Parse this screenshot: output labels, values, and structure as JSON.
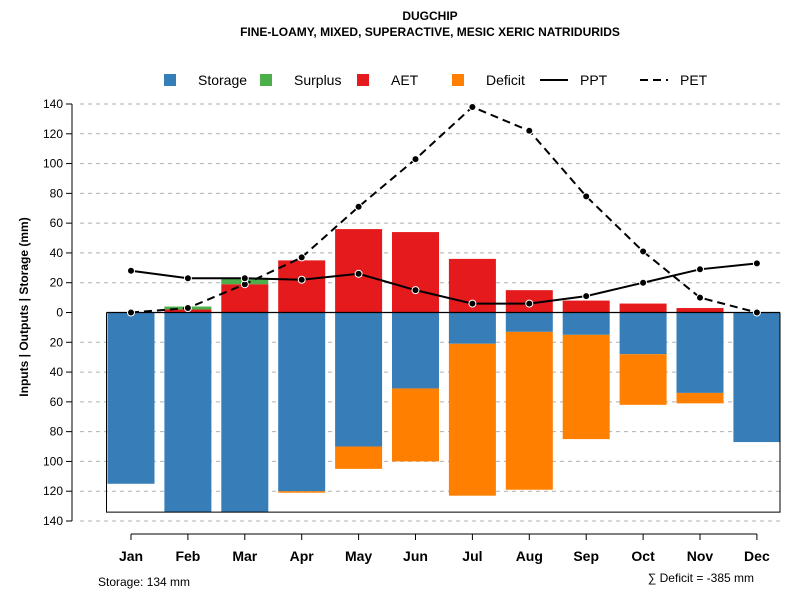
{
  "chart_data": {
    "type": "bar",
    "title": "DUGCHIP",
    "subtitle": "FINE-LOAMY, MIXED, SUPERACTIVE, MESIC XERIC NATRIDURIDS",
    "ylabel": "Inputs | Outputs | Storage    (mm)",
    "ylim": [
      -140,
      140
    ],
    "yticks": [
      140,
      120,
      100,
      80,
      60,
      40,
      20,
      0,
      -20,
      -40,
      -60,
      -80,
      -100,
      -120,
      -140
    ],
    "ytick_labels": [
      "140",
      "120",
      "100",
      "80",
      "60",
      "40",
      "20",
      "0",
      "20",
      "40",
      "60",
      "80",
      "100",
      "120",
      "140"
    ],
    "categories": [
      "Jan",
      "Feb",
      "Mar",
      "Apr",
      "May",
      "Jun",
      "Jul",
      "Aug",
      "Sep",
      "Oct",
      "Nov",
      "Dec"
    ],
    "legend": [
      {
        "name": "Storage",
        "kind": "box",
        "color": "#377EB8"
      },
      {
        "name": "Surplus",
        "kind": "box",
        "color": "#4DAF4A"
      },
      {
        "name": "AET",
        "kind": "box",
        "color": "#E41A1C"
      },
      {
        "name": "Deficit",
        "kind": "box",
        "color": "#FF7F00"
      },
      {
        "name": "PPT",
        "kind": "solid",
        "color": "#000000"
      },
      {
        "name": "PET",
        "kind": "dashed",
        "color": "#000000"
      }
    ],
    "series": [
      {
        "name": "AET",
        "color": "#E41A1C",
        "values": [
          0,
          2,
          19,
          35,
          56,
          54,
          36,
          15,
          8,
          6,
          3,
          0
        ]
      },
      {
        "name": "Surplus",
        "color": "#4DAF4A",
        "values": [
          0,
          2,
          4,
          0,
          0,
          0,
          0,
          0,
          0,
          0,
          0,
          0
        ]
      },
      {
        "name": "Storage",
        "color": "#377EB8",
        "values": [
          -115,
          -134,
          -134,
          -120,
          -90,
          -51,
          -21,
          -13,
          -15,
          -28,
          -54,
          -87
        ]
      },
      {
        "name": "Deficit",
        "color": "#FF7F00",
        "values": [
          0,
          0,
          0,
          -1,
          -15,
          -49,
          -102,
          -106,
          -70,
          -34,
          -7,
          0
        ]
      },
      {
        "name": "PPT",
        "color": "#000000",
        "values": [
          28,
          23,
          23,
          22,
          26,
          15,
          6,
          6,
          11,
          20,
          29,
          33
        ]
      },
      {
        "name": "PET",
        "color": "#000000",
        "values": [
          0,
          3,
          19,
          37,
          71,
          103,
          138,
          122,
          78,
          41,
          10,
          0
        ]
      }
    ],
    "grid": true,
    "legend_position": "top"
  },
  "footer": {
    "storage_text": "Storage: 134 mm",
    "deficit_text": "∑ Deficit = -385 mm"
  }
}
